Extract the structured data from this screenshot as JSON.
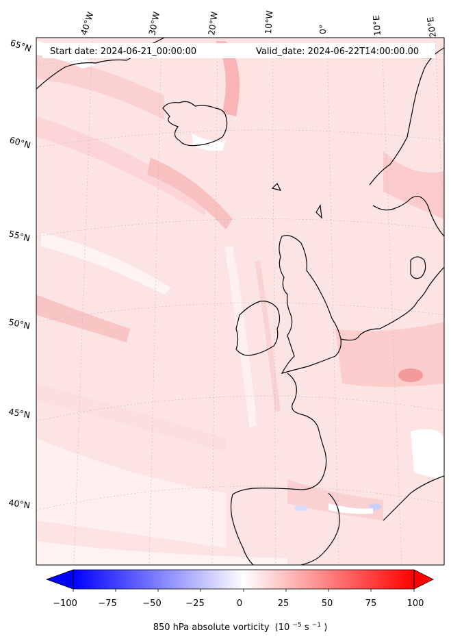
{
  "map": {
    "start_date": "Start date: 2024-06-21_00:00:00",
    "valid_date": "Valid_date: 2024-06-22T14:00:00.00",
    "lon_labels": [
      "40°W",
      "30°W",
      "20°W",
      "10°W",
      "0°",
      "10°E",
      "20°E"
    ],
    "lat_labels": [
      "65°N",
      "60°N",
      "55°N",
      "50°N",
      "45°N",
      "40°N"
    ],
    "variable": "850 hPa absolute vorticity",
    "units_base": "(10",
    "units_exp1": "−5",
    "units_mid": "s",
    "units_exp2": "−1",
    "units_end": ")"
  },
  "colorbar": {
    "ticks": [
      "−100",
      "−75",
      "−50",
      "−25",
      "0",
      "25",
      "50",
      "75",
      "100"
    ],
    "min_color": "#0000ff",
    "mid_color": "#ffffff",
    "max_color": "#ff0000"
  }
}
